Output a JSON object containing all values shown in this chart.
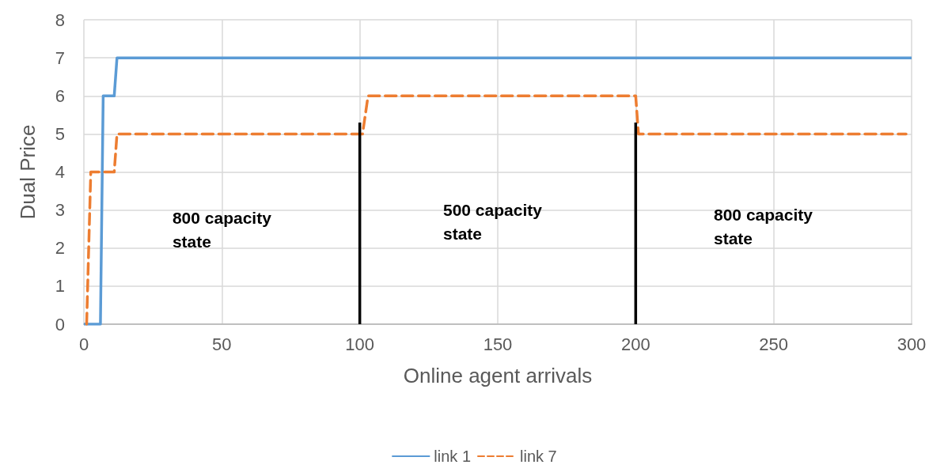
{
  "chart_data": {
    "type": "line",
    "xlabel": "Online agent arrivals",
    "ylabel": "Dual Price",
    "xlim": [
      0,
      300
    ],
    "xticks": [
      0,
      50,
      100,
      150,
      200,
      250,
      300
    ],
    "ylim": [
      0,
      8
    ],
    "yticks": [
      0,
      1,
      2,
      3,
      4,
      5,
      6,
      7,
      8
    ],
    "grid": true,
    "legend": "bottom",
    "marker": "none",
    "series": [
      {
        "name": "link 1",
        "color": "#5b9bd5",
        "line_style": "solid",
        "x": [
          0,
          6,
          7,
          11,
          12,
          300
        ],
        "values": [
          0,
          0,
          6,
          6,
          7,
          7
        ]
      },
      {
        "name": "link 7",
        "color": "#ed7d31",
        "line_style": "dashed",
        "x": [
          1,
          2.5,
          11,
          12,
          101,
          103,
          200,
          201,
          298
        ],
        "values": [
          0,
          4,
          4,
          5,
          5,
          6,
          6,
          5,
          5
        ]
      },
      {
        "color": "#000000",
        "line_style": "solid",
        "x": [
          100,
          100
        ],
        "values": [
          0,
          5.3
        ]
      },
      {
        "color": "#000000",
        "line_style": "solid",
        "x": [
          200,
          200
        ],
        "values": [
          0,
          5.3
        ]
      }
    ],
    "annotations": [
      "800 capacity\nstate",
      "500 capacity\nstate",
      "800 capacity\nstate"
    ]
  }
}
